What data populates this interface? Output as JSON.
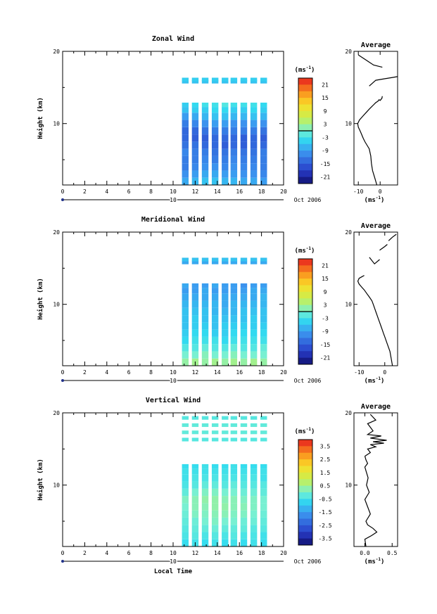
{
  "chart_data": [
    {
      "type": "heatmap",
      "title": "Zonal Wind",
      "ylabel": "Height (km)",
      "xlabel": "",
      "x_ticks": [
        "0",
        "2",
        "4",
        "6",
        "8",
        "10",
        "12",
        "14",
        "16",
        "18",
        "20"
      ],
      "y_ticks": [
        "10",
        "20"
      ],
      "xlim": [
        0,
        20
      ],
      "ylim": [
        1.5,
        20
      ],
      "date_marker": "10",
      "date_label": "Oct 2006",
      "colorbar": {
        "unit": "(ms",
        "unit_exp": "-1",
        "unit_close": ")",
        "ticks": [
          "21",
          "15",
          "9",
          "3",
          "-3",
          "-9",
          "-15",
          "-21"
        ],
        "range": [
          -24,
          24
        ]
      },
      "columns": [
        {
          "x": 11.1,
          "values": [
            -8,
            -10,
            -12,
            -12,
            -11,
            -13,
            -14,
            -14,
            -12,
            -9,
            -6,
            -5
          ]
        },
        {
          "x": 12.0,
          "values": [
            -7,
            -9,
            -11,
            -12,
            -12,
            -13,
            -15,
            -14,
            -11,
            -8,
            -5,
            -4
          ]
        },
        {
          "x": 12.9,
          "values": [
            -6,
            -8,
            -10,
            -11,
            -12,
            -14,
            -15,
            -13,
            -10,
            -7,
            -5,
            -3
          ]
        },
        {
          "x": 13.8,
          "values": [
            -6,
            -8,
            -10,
            -12,
            -13,
            -14,
            -14,
            -12,
            -9,
            -6,
            -4,
            -3
          ]
        },
        {
          "x": 14.7,
          "values": [
            -7,
            -9,
            -11,
            -12,
            -13,
            -15,
            -14,
            -12,
            -9,
            -6,
            -4,
            -2
          ]
        },
        {
          "x": 15.5,
          "values": [
            -7,
            -9,
            -10,
            -11,
            -12,
            -14,
            -14,
            -12,
            -10,
            -7,
            -5,
            -3
          ]
        },
        {
          "x": 16.4,
          "values": [
            -8,
            -10,
            -11,
            -12,
            -13,
            -15,
            -15,
            -12,
            -10,
            -7,
            -5,
            -3
          ]
        },
        {
          "x": 17.3,
          "values": [
            -8,
            -10,
            -11,
            -12,
            -13,
            -14,
            -14,
            -12,
            -9,
            -6,
            -4,
            -3
          ]
        },
        {
          "x": 18.2,
          "values": [
            -9,
            -11,
            -12,
            -12,
            -12,
            -14,
            -15,
            -13,
            -10,
            -7,
            -5,
            -4
          ]
        }
      ],
      "heights": [
        2.0,
        3.0,
        4.0,
        5.0,
        6.0,
        7.0,
        8.0,
        9.0,
        10.0,
        11.0,
        12.0,
        12.6
      ],
      "upper_rows": [
        {
          "y": 15.8,
          "value": -6
        },
        {
          "y": 16.1,
          "value": -5
        }
      ]
    },
    {
      "type": "line",
      "title": "Average",
      "xlabel": "(ms",
      "xlabel_exp": "-1",
      "xlabel_close": ")",
      "x_ticks": [
        "-10",
        "0"
      ],
      "y_ticks": [
        "10",
        "20"
      ],
      "xlim": [
        -12,
        8
      ],
      "ylim": [
        1.5,
        20
      ],
      "segments": [
        {
          "x": [
            -1.5,
            -2.5,
            -3.5,
            -4.0,
            -4.3,
            -5.0,
            -6.0,
            -7.0,
            -7.8,
            -8.5,
            -9.2,
            -10.0,
            -10.3,
            -9.5,
            -8.0,
            -6.5,
            -5.0,
            -4.0,
            -3.0,
            -2.0,
            -1.0,
            -0.5,
            0.0,
            0.8,
            1.0
          ],
          "y": [
            1.5,
            2.5,
            3.5,
            4.5,
            5.5,
            6.5,
            7.0,
            7.5,
            8.0,
            8.5,
            9.0,
            9.5,
            10.0,
            10.5,
            11.0,
            11.5,
            12.0,
            12.3,
            12.6,
            12.9,
            13.1,
            13.3,
            13.2,
            13.5,
            13.8
          ]
        },
        {
          "x": [
            -5.0,
            -2.0,
            2.0,
            6.0,
            8.0
          ],
          "y": [
            15.2,
            16.0,
            16.2,
            16.4,
            16.5
          ]
        },
        {
          "x": [
            -10.0,
            -7.0,
            -5.0,
            -3.0,
            1.0
          ],
          "y": [
            19.5,
            18.9,
            18.5,
            18.1,
            17.8
          ]
        }
      ]
    },
    {
      "type": "heatmap",
      "title": "Meridional Wind",
      "ylabel": "Height (km)",
      "xlabel": "",
      "x_ticks": [
        "0",
        "2",
        "4",
        "6",
        "8",
        "10",
        "12",
        "14",
        "16",
        "18",
        "20"
      ],
      "y_ticks": [
        "10",
        "20"
      ],
      "xlim": [
        0,
        20
      ],
      "ylim": [
        1.5,
        20
      ],
      "date_marker": "10",
      "date_label": "Oct 2006",
      "colorbar": {
        "unit": "(ms",
        "unit_exp": "-1",
        "unit_close": ")",
        "ticks": [
          "21",
          "15",
          "9",
          "3",
          "-3",
          "-9",
          "-15",
          "-21"
        ],
        "range": [
          -24,
          24
        ]
      },
      "columns": [
        {
          "x": 11.1,
          "values": [
            2,
            0,
            -2,
            -4,
            -5,
            -6,
            -6,
            -6,
            -7,
            -8,
            -9,
            -8
          ]
        },
        {
          "x": 12.0,
          "values": [
            3,
            0,
            -2,
            -3,
            -4,
            -5,
            -5,
            -6,
            -7,
            -8,
            -9,
            -9
          ]
        },
        {
          "x": 12.9,
          "values": [
            2,
            1,
            -1,
            -3,
            -4,
            -5,
            -6,
            -6,
            -7,
            -8,
            -8,
            -9
          ]
        },
        {
          "x": 13.8,
          "values": [
            3,
            0,
            -2,
            -3,
            -5,
            -6,
            -6,
            -7,
            -7,
            -8,
            -9,
            -8
          ]
        },
        {
          "x": 14.7,
          "values": [
            2,
            0,
            -2,
            -4,
            -5,
            -5,
            -6,
            -7,
            -8,
            -8,
            -9,
            -9
          ]
        },
        {
          "x": 15.5,
          "values": [
            3,
            1,
            -1,
            -3,
            -4,
            -5,
            -6,
            -7,
            -7,
            -8,
            -9,
            -9
          ]
        },
        {
          "x": 16.4,
          "values": [
            2,
            0,
            -2,
            -3,
            -4,
            -5,
            -6,
            -6,
            -7,
            -8,
            -9,
            -10
          ]
        },
        {
          "x": 17.3,
          "values": [
            3,
            0,
            -2,
            -3,
            -4,
            -5,
            -5,
            -6,
            -7,
            -8,
            -8,
            -9
          ]
        },
        {
          "x": 18.2,
          "values": [
            2,
            0,
            -1,
            -3,
            -4,
            -5,
            -6,
            -6,
            -7,
            -7,
            -8,
            -9
          ]
        }
      ],
      "heights": [
        2.0,
        3.0,
        4.0,
        5.0,
        6.0,
        7.0,
        8.0,
        9.0,
        10.0,
        11.0,
        12.0,
        12.6
      ],
      "upper_rows": [
        {
          "y": 15.8,
          "value": -8
        },
        {
          "y": 16.2,
          "value": -6
        }
      ]
    },
    {
      "type": "line",
      "title": "Average",
      "xlabel": "(ms",
      "xlabel_exp": "-1",
      "xlabel_close": ")",
      "x_ticks": [
        "-10",
        "0"
      ],
      "y_ticks": [
        "10",
        "20"
      ],
      "xlim": [
        -12,
        5
      ],
      "ylim": [
        1.5,
        20
      ],
      "segments": [
        {
          "x": [
            3.0,
            2.5,
            2.0,
            1.0,
            0.0,
            -0.5,
            -1.0,
            -1.5,
            -2.0,
            -2.5,
            -3.0,
            -3.5,
            -4.0,
            -4.5,
            -5.0,
            -6.0,
            -7.0,
            -8.0,
            -9.0,
            -10.0,
            -10.5,
            -10.0,
            -9.0,
            -8.0
          ],
          "y": [
            1.5,
            2.5,
            3.5,
            4.5,
            5.5,
            6.0,
            6.5,
            7.0,
            7.5,
            8.0,
            8.5,
            9.0,
            9.5,
            10.0,
            10.5,
            11.0,
            11.5,
            12.0,
            12.4,
            12.8,
            13.2,
            13.6,
            13.8,
            14.0
          ]
        },
        {
          "x": [
            -6.0,
            -4.0,
            -2.0
          ],
          "y": [
            16.5,
            15.6,
            16.2
          ]
        },
        {
          "x": [
            -2.0,
            0.0,
            1.0
          ],
          "y": [
            17.5,
            18.0,
            18.3
          ]
        },
        {
          "x": [
            1.5,
            3.0,
            4.5
          ],
          "y": [
            18.8,
            19.3,
            19.7
          ]
        }
      ]
    },
    {
      "type": "heatmap",
      "title": "Vertical Wind",
      "ylabel": "Height (km)",
      "xlabel": "Local Time",
      "x_ticks": [
        "0",
        "2",
        "4",
        "6",
        "8",
        "10",
        "12",
        "14",
        "16",
        "18",
        "20"
      ],
      "y_ticks": [
        "10",
        "20"
      ],
      "xlim": [
        0,
        20
      ],
      "ylim": [
        1.5,
        20
      ],
      "date_marker": "10",
      "date_label": "Oct 2006",
      "colorbar": {
        "unit": "(ms",
        "unit_exp": "-1",
        "unit_close": ")",
        "ticks": [
          "3.5",
          "2.5",
          "1.5",
          "0.5",
          "-0.5",
          "-1.5",
          "-2.5",
          "-3.5"
        ],
        "range": [
          -4,
          4
        ]
      },
      "columns": [
        {
          "x": 11.1,
          "values": [
            -0.6,
            -0.4,
            -0.3,
            -0.2,
            -0.1,
            0.0,
            0.1,
            -0.2,
            -0.4,
            -0.5,
            -0.5,
            -0.6
          ]
        },
        {
          "x": 12.0,
          "values": [
            -0.5,
            -0.3,
            -0.2,
            -0.1,
            0.1,
            0.2,
            0.2,
            0.0,
            -0.3,
            -0.4,
            -0.5,
            -0.6
          ]
        },
        {
          "x": 12.9,
          "values": [
            -0.6,
            -0.4,
            -0.2,
            0.0,
            0.1,
            0.2,
            0.3,
            0.1,
            -0.2,
            -0.4,
            -0.5,
            -0.5
          ]
        },
        {
          "x": 13.8,
          "values": [
            -0.5,
            -0.3,
            -0.1,
            0.1,
            0.2,
            0.3,
            0.3,
            0.1,
            -0.2,
            -0.4,
            -0.5,
            -0.6
          ]
        },
        {
          "x": 14.7,
          "values": [
            -0.6,
            -0.4,
            -0.2,
            0.0,
            0.2,
            0.3,
            0.2,
            0.0,
            -0.3,
            -0.4,
            -0.5,
            -0.6
          ]
        },
        {
          "x": 15.5,
          "values": [
            -0.5,
            -0.3,
            -0.2,
            0.0,
            0.1,
            0.2,
            0.2,
            0.0,
            -0.2,
            -0.4,
            -0.5,
            -0.5
          ]
        },
        {
          "x": 16.4,
          "values": [
            -0.6,
            -0.4,
            -0.2,
            -0.1,
            0.1,
            0.2,
            0.1,
            -0.1,
            -0.3,
            -0.4,
            -0.5,
            -0.6
          ]
        },
        {
          "x": 17.3,
          "values": [
            -0.5,
            -0.4,
            -0.3,
            -0.1,
            0.0,
            0.1,
            0.1,
            -0.1,
            -0.3,
            -0.4,
            -0.5,
            -0.6
          ]
        },
        {
          "x": 18.2,
          "values": [
            -0.6,
            -0.5,
            -0.3,
            -0.2,
            -0.1,
            0.0,
            0.0,
            -0.2,
            -0.3,
            -0.5,
            -0.5,
            -0.6
          ]
        }
      ],
      "heights": [
        2.0,
        3.0,
        4.0,
        5.0,
        6.0,
        7.0,
        8.0,
        9.0,
        10.0,
        11.0,
        12.0,
        12.6
      ],
      "upper_rows": [
        {
          "y": 16.3,
          "value": -0.3
        },
        {
          "y": 17.3,
          "value": -0.2
        },
        {
          "y": 18.3,
          "value": -0.2
        },
        {
          "y": 19.3,
          "value": -0.3
        }
      ]
    },
    {
      "type": "line",
      "title": "Average",
      "xlabel": "(ms",
      "xlabel_exp": "-1",
      "xlabel_close": ")",
      "x_ticks": [
        "0.0",
        "0.5"
      ],
      "y_ticks": [
        "10",
        "20"
      ],
      "xlim": [
        -0.2,
        0.6
      ],
      "ylim": [
        1.5,
        20
      ],
      "segments": [
        {
          "x": [
            0.02,
            0.0,
            0.12,
            0.22,
            0.15,
            0.05,
            0.02,
            0.1,
            0.05,
            0.0,
            0.08,
            0.03,
            0.06,
            0.02,
            0.0,
            0.05,
            0.02,
            0.0
          ],
          "y": [
            1.5,
            2.5,
            3.0,
            3.5,
            4.0,
            4.5,
            5.0,
            6.0,
            7.0,
            8.0,
            9.0,
            10.0,
            11.0,
            12.0,
            12.5,
            13.0,
            13.5,
            14.0
          ]
        },
        {
          "x": [
            0.0,
            0.1,
            0.05,
            0.2,
            0.1,
            0.35,
            0.15,
            0.4,
            0.1,
            0.3,
            0.05,
            0.15,
            0.1,
            0.05,
            0.2,
            0.1
          ],
          "y": [
            14.0,
            14.5,
            15.0,
            15.3,
            15.6,
            15.8,
            16.0,
            16.2,
            16.5,
            16.8,
            17.0,
            17.5,
            18.0,
            18.5,
            19.0,
            19.8
          ]
        }
      ]
    }
  ]
}
